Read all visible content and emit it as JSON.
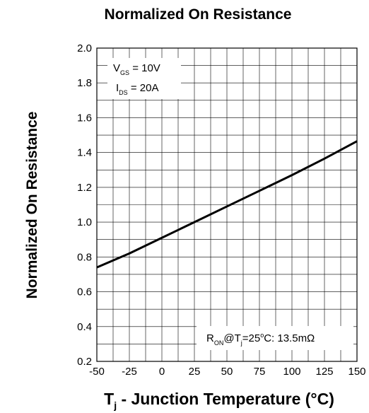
{
  "chart_data": {
    "type": "line",
    "title": "Normalized On Resistance",
    "ylabel": "Normalized On Resistance",
    "xlabel": {
      "main": "T",
      "sub": "j",
      "rest": " - Junction Temperature (°C)"
    },
    "xlim": [
      -50,
      150
    ],
    "ylim": [
      0.2,
      2.0
    ],
    "x_ticks": [
      -50,
      -25,
      0,
      25,
      50,
      75,
      100,
      125,
      150
    ],
    "x_tick_labels": [
      "-50",
      "-25",
      "0",
      "25",
      "50",
      "75",
      "100",
      "125",
      "150"
    ],
    "y_ticks": [
      0.2,
      0.4,
      0.6,
      0.8,
      1.0,
      1.2,
      1.4,
      1.6,
      1.8,
      2.0
    ],
    "y_tick_labels": [
      "0.2",
      "0.4",
      "0.6",
      "0.8",
      "1.0",
      "1.2",
      "1.4",
      "1.6",
      "1.8",
      "2.0"
    ],
    "grid": true,
    "series": [
      {
        "x": [
          -50,
          -25,
          0,
          25,
          50,
          75,
          100,
          125,
          150
        ],
        "y": [
          0.74,
          0.82,
          0.91,
          1.0,
          1.09,
          1.18,
          1.27,
          1.365,
          1.465
        ]
      }
    ],
    "annotations": {
      "conditions": [
        {
          "main": "V",
          "sub": "GS",
          "rest": " = 10V"
        },
        {
          "main": "I",
          "sub": "DS",
          "rest": " = 20A"
        }
      ],
      "reference": {
        "pre": "R",
        "sub1": "ON",
        "mid": "@T",
        "sub2": "j",
        "post1": "=25",
        "sup": "o",
        "post2": "C: 13.5mΩ"
      }
    }
  }
}
